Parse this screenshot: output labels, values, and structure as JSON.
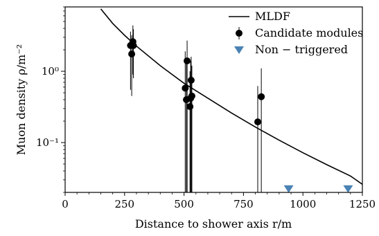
{
  "chart_data": {
    "type": "scatter",
    "xlabel": "Distance to shower axis r/m",
    "ylabel": "Muon density ρ/m⁻²",
    "xlim": [
      0,
      1250
    ],
    "ylim": [
      0.02,
      8
    ],
    "y_scale": "log",
    "x_ticks": [
      0,
      250,
      500,
      750,
      1000,
      1250
    ],
    "x_tick_labels": [
      "0",
      "250",
      "500",
      "750",
      "1000",
      "1250"
    ],
    "y_ticks": [
      0.1,
      1
    ],
    "y_tick_labels": [
      "10⁻¹",
      "10⁰"
    ],
    "legend_position": "top-right",
    "series": [
      {
        "name": "MLDF",
        "kind": "line",
        "color": "#000000",
        "x": [
          150,
          200,
          250,
          300,
          400,
          500,
          600,
          700,
          800,
          900,
          1000,
          1100,
          1200,
          1250
        ],
        "y": [
          7.5,
          4.7,
          3.2,
          2.25,
          1.2,
          0.68,
          0.42,
          0.26,
          0.165,
          0.108,
          0.072,
          0.049,
          0.034,
          0.026
        ]
      },
      {
        "name": "Candidate modules",
        "kind": "points",
        "color": "#000000",
        "points": [
          {
            "x": 275,
            "y": 2.3,
            "lo": 0.55,
            "hi": 3.6
          },
          {
            "x": 280,
            "y": 1.75,
            "lo": 0.45,
            "hi": 3.2
          },
          {
            "x": 285,
            "y": 2.6,
            "lo": 0.9,
            "hi": 4.4
          },
          {
            "x": 287,
            "y": 2.3,
            "lo": 0.8,
            "hi": 3.9
          },
          {
            "x": 505,
            "y": 0.58,
            "lo": 0.02,
            "hi": 1.9
          },
          {
            "x": 510,
            "y": 0.4,
            "lo": 0.02,
            "hi": 1.3
          },
          {
            "x": 513,
            "y": 1.4,
            "lo": 0.02,
            "hi": 2.7
          },
          {
            "x": 525,
            "y": 0.32,
            "lo": 0.02,
            "hi": 1.0
          },
          {
            "x": 528,
            "y": 0.42,
            "lo": 0.02,
            "hi": 1.4
          },
          {
            "x": 530,
            "y": 0.75,
            "lo": 0.02,
            "hi": 1.6
          },
          {
            "x": 533,
            "y": 0.45,
            "lo": 0.02,
            "hi": 1.2
          },
          {
            "x": 810,
            "y": 0.195,
            "lo": 0.02,
            "hi": 0.62
          },
          {
            "x": 825,
            "y": 0.44,
            "lo": 0.02,
            "hi": 1.1
          }
        ]
      },
      {
        "name": "Non − triggered",
        "kind": "markers",
        "color": "#4a82b4",
        "x": [
          940,
          1190
        ],
        "y": [
          0.0225,
          0.0225
        ]
      }
    ]
  }
}
